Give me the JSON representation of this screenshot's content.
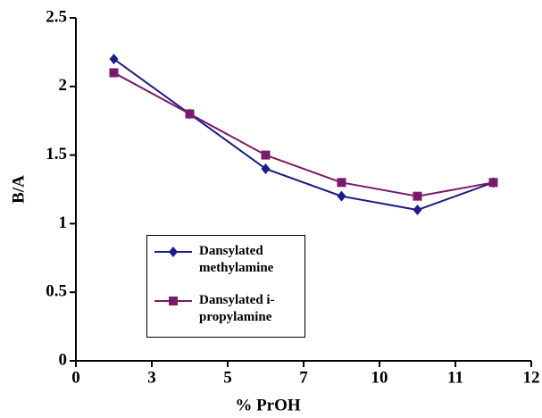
{
  "chart_data": {
    "type": "line",
    "x_label": "% PrOH",
    "y_label": "B/A",
    "xlim": [
      0,
      12
    ],
    "xticks": [
      0,
      3,
      5,
      7,
      10,
      11,
      12
    ],
    "ylim": [
      0,
      2.5
    ],
    "yticks": [
      0,
      0.5,
      1,
      1.5,
      2,
      2.5
    ],
    "x": [
      1.5,
      4,
      6,
      8.5,
      10.5,
      11.5
    ],
    "series": [
      {
        "name": "Dansylated methylamine",
        "color": "#1c1c8a",
        "marker": "diamond",
        "values": [
          2.2,
          1.8,
          1.4,
          1.2,
          1.1,
          1.3
        ]
      },
      {
        "name": "Dansylated i-propylamine",
        "color": "#7a1a6a",
        "marker": "square",
        "values": [
          2.1,
          1.8,
          1.5,
          1.3,
          1.2,
          1.3
        ]
      }
    ]
  }
}
